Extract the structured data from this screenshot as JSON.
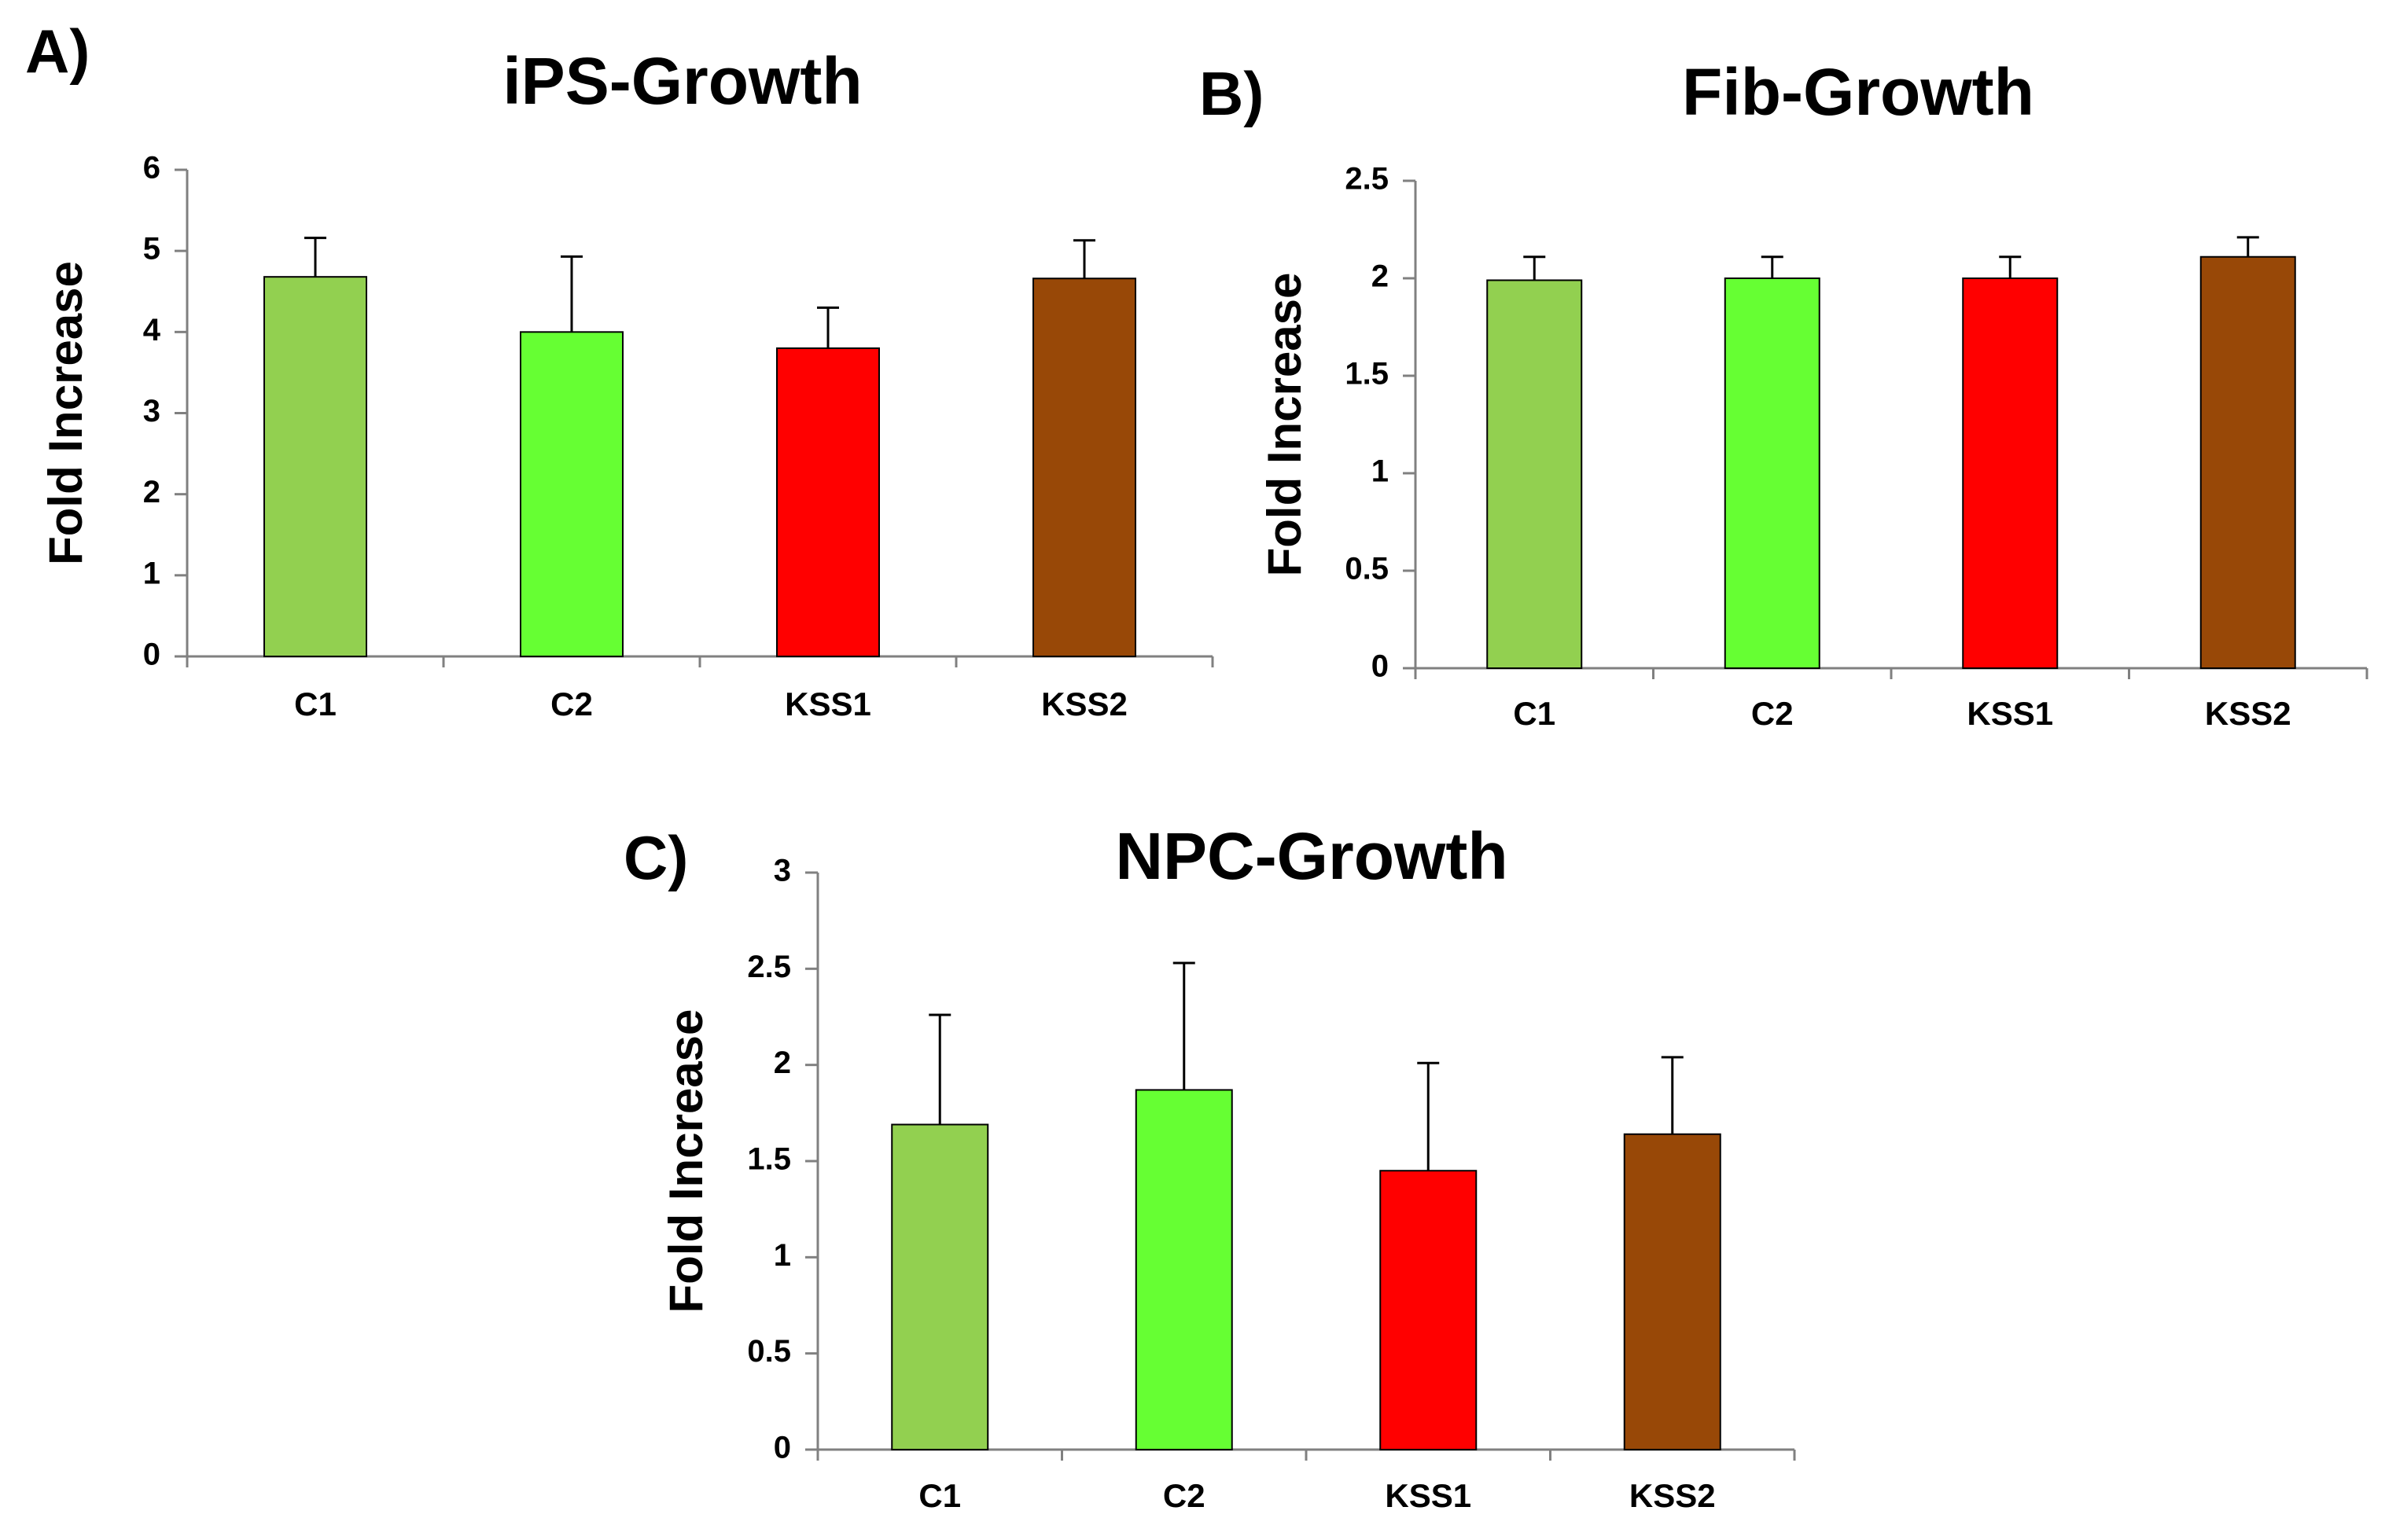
{
  "chart_data": [
    {
      "type": "bar",
      "panel_label": "A)",
      "title": "iPS-Growth",
      "xlabel": "",
      "ylabel": "Fold Increase",
      "categories": [
        "C1",
        "C2",
        "KSS1",
        "KSS2"
      ],
      "values": [
        4.68,
        4.0,
        3.8,
        4.66
      ],
      "error": [
        0.48,
        0.93,
        0.5,
        0.47
      ],
      "colors": [
        "#92d050",
        "#66ff33",
        "#ff0000",
        "#984807"
      ],
      "ylim": [
        0,
        6
      ],
      "yticks": [
        0,
        1,
        2,
        3,
        4,
        5,
        6
      ],
      "ytick_labels": [
        "0",
        "1",
        "2",
        "3",
        "4",
        "5",
        "6"
      ],
      "grid": false,
      "legend": "none"
    },
    {
      "type": "bar",
      "panel_label": "B)",
      "title": "Fib-Growth",
      "xlabel": "",
      "ylabel": "Fold Increase",
      "categories": [
        "C1",
        "C2",
        "KSS1",
        "KSS2"
      ],
      "values": [
        1.99,
        2.0,
        2.0,
        2.11
      ],
      "error": [
        0.12,
        0.11,
        0.11,
        0.1
      ],
      "colors": [
        "#92d050",
        "#66ff33",
        "#ff0000",
        "#984807"
      ],
      "ylim": [
        0,
        2.5
      ],
      "yticks": [
        0,
        0.5,
        1,
        1.5,
        2,
        2.5
      ],
      "ytick_labels": [
        "0",
        "0.5",
        "1",
        "1.5",
        "2",
        "2.5"
      ],
      "grid": false,
      "legend": "none"
    },
    {
      "type": "bar",
      "panel_label": "C)",
      "title": "NPC-Growth",
      "xlabel": "",
      "ylabel": "Fold Increase",
      "categories": [
        "C1",
        "C2",
        "KSS1",
        "KSS2"
      ],
      "values": [
        1.69,
        1.87,
        1.45,
        1.64
      ],
      "error": [
        0.57,
        0.66,
        0.56,
        0.4
      ],
      "colors": [
        "#92d050",
        "#66ff33",
        "#ff0000",
        "#984807"
      ],
      "ylim": [
        0,
        3
      ],
      "yticks": [
        0,
        0.5,
        1,
        1.5,
        2,
        2.5,
        3
      ],
      "ytick_labels": [
        "0",
        "0.5",
        "1",
        "1.5",
        "2",
        "2.5",
        "3"
      ],
      "grid": false,
      "legend": "none"
    }
  ]
}
